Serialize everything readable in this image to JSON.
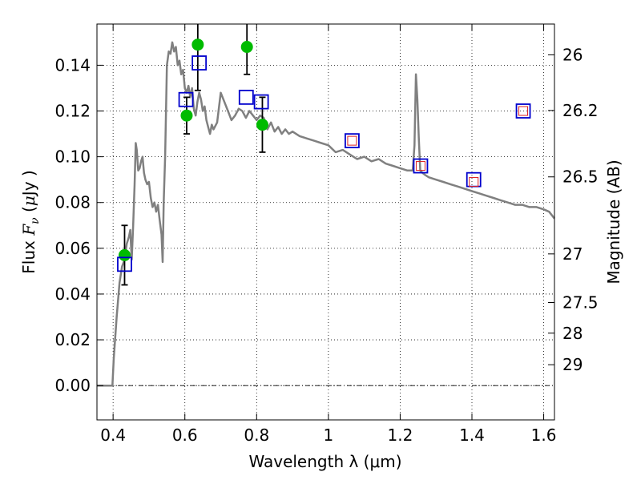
{
  "chart_data": {
    "type": "line",
    "title": "",
    "xlabel": "Wavelength  λ (μm)",
    "ylabel": {
      "prefix": "Flux  ",
      "symbol": "F",
      "subscript": "ν",
      "paren_open": "  (",
      "unit_mu": "μ",
      "unit_rest": "Jy )"
    },
    "y2label": "Magnitude (AB)",
    "xlim": [
      0.355,
      1.63
    ],
    "ylim": [
      -0.015,
      0.158
    ],
    "grid": true,
    "xticks": [
      {
        "value": 0.4,
        "label": "0.4"
      },
      {
        "value": 0.6,
        "label": "0.6"
      },
      {
        "value": 0.8,
        "label": "0.8"
      },
      {
        "value": 1.0,
        "label": "1"
      },
      {
        "value": 1.2,
        "label": "1.2"
      },
      {
        "value": 1.4,
        "label": "1.4"
      },
      {
        "value": 1.6,
        "label": "1.6"
      }
    ],
    "yticks": [
      {
        "value": 0.0,
        "label": "0.00"
      },
      {
        "value": 0.02,
        "label": "0.02"
      },
      {
        "value": 0.04,
        "label": "0.04"
      },
      {
        "value": 0.06,
        "label": "0.06"
      },
      {
        "value": 0.08,
        "label": "0.08"
      },
      {
        "value": 0.1,
        "label": "0.10"
      },
      {
        "value": 0.12,
        "label": "0.12"
      },
      {
        "value": 0.14,
        "label": "0.14"
      }
    ],
    "y2ticks": [
      {
        "value": 26,
        "label": "26"
      },
      {
        "value": 26.2,
        "label": "26.2"
      },
      {
        "value": 26.5,
        "label": "26.5"
      },
      {
        "value": 27,
        "label": "27"
      },
      {
        "value": 27.5,
        "label": "27.5"
      },
      {
        "value": 28,
        "label": "28"
      },
      {
        "value": 29,
        "label": "29"
      }
    ],
    "y2_zero_point_uJy": 23.9,
    "colors": {
      "model": "#808080",
      "observed": "#00bb00",
      "model_photometry": "#0000cc",
      "nir_fit": "#dd2222",
      "errorbar": "#000000",
      "zero_line": "#000000"
    },
    "series": [
      {
        "name": "model SED",
        "kind": "line",
        "x": [
          0.355,
          0.398,
          0.402,
          0.41,
          0.418,
          0.425,
          0.432,
          0.438,
          0.444,
          0.448,
          0.452,
          0.456,
          0.46,
          0.463,
          0.466,
          0.47,
          0.474,
          0.478,
          0.482,
          0.486,
          0.49,
          0.495,
          0.5,
          0.505,
          0.51,
          0.515,
          0.52,
          0.525,
          0.53,
          0.535,
          0.538,
          0.541,
          0.545,
          0.55,
          0.555,
          0.56,
          0.565,
          0.57,
          0.575,
          0.58,
          0.585,
          0.59,
          0.595,
          0.6,
          0.605,
          0.61,
          0.615,
          0.62,
          0.625,
          0.63,
          0.635,
          0.64,
          0.645,
          0.65,
          0.655,
          0.66,
          0.665,
          0.67,
          0.675,
          0.68,
          0.69,
          0.7,
          0.71,
          0.72,
          0.73,
          0.74,
          0.75,
          0.76,
          0.77,
          0.78,
          0.79,
          0.8,
          0.81,
          0.82,
          0.83,
          0.84,
          0.85,
          0.86,
          0.87,
          0.88,
          0.89,
          0.9,
          0.92,
          0.94,
          0.96,
          0.98,
          1.0,
          1.02,
          1.04,
          1.06,
          1.08,
          1.1,
          1.12,
          1.14,
          1.16,
          1.18,
          1.2,
          1.22,
          1.235,
          1.24,
          1.244,
          1.248,
          1.252,
          1.256,
          1.262,
          1.27,
          1.28,
          1.3,
          1.32,
          1.34,
          1.36,
          1.38,
          1.4,
          1.42,
          1.44,
          1.46,
          1.48,
          1.5,
          1.52,
          1.54,
          1.56,
          1.58,
          1.6,
          1.615,
          1.63
        ],
        "y": [
          0.0,
          0.0,
          0.012,
          0.03,
          0.045,
          0.052,
          0.055,
          0.062,
          0.065,
          0.068,
          0.055,
          0.07,
          0.088,
          0.106,
          0.103,
          0.094,
          0.095,
          0.098,
          0.1,
          0.093,
          0.09,
          0.088,
          0.089,
          0.082,
          0.078,
          0.08,
          0.076,
          0.079,
          0.072,
          0.066,
          0.054,
          0.08,
          0.1,
          0.14,
          0.146,
          0.145,
          0.15,
          0.146,
          0.148,
          0.14,
          0.142,
          0.136,
          0.138,
          0.13,
          0.128,
          0.131,
          0.126,
          0.13,
          0.121,
          0.118,
          0.124,
          0.128,
          0.125,
          0.12,
          0.122,
          0.116,
          0.113,
          0.11,
          0.114,
          0.112,
          0.115,
          0.128,
          0.124,
          0.12,
          0.116,
          0.118,
          0.121,
          0.12,
          0.117,
          0.12,
          0.118,
          0.116,
          0.118,
          0.117,
          0.112,
          0.115,
          0.111,
          0.113,
          0.11,
          0.112,
          0.11,
          0.111,
          0.109,
          0.108,
          0.107,
          0.106,
          0.105,
          0.102,
          0.103,
          0.101,
          0.099,
          0.1,
          0.098,
          0.099,
          0.097,
          0.096,
          0.095,
          0.094,
          0.094,
          0.105,
          0.136,
          0.125,
          0.108,
          0.094,
          0.093,
          0.092,
          0.091,
          0.09,
          0.089,
          0.088,
          0.087,
          0.086,
          0.085,
          0.084,
          0.083,
          0.082,
          0.081,
          0.08,
          0.079,
          0.079,
          0.078,
          0.078,
          0.077,
          0.076,
          0.073
        ]
      },
      {
        "name": "observed photometry",
        "kind": "points-errorbars",
        "x": [
          0.432,
          0.605,
          0.636,
          0.773,
          0.816
        ],
        "y": [
          0.057,
          0.118,
          0.149,
          0.148,
          0.114
        ],
        "yerr": [
          0.013,
          0.008,
          0.02,
          0.012,
          0.012
        ]
      },
      {
        "name": "model photometry",
        "kind": "open-squares",
        "x": [
          0.432,
          0.603,
          0.64,
          0.771,
          0.813,
          1.066,
          1.257,
          1.405,
          1.543
        ],
        "y": [
          0.053,
          0.125,
          0.141,
          0.126,
          0.124,
          0.107,
          0.096,
          0.09,
          0.12
        ]
      },
      {
        "name": "near-IR fit points",
        "kind": "small-squares",
        "x": [
          1.066,
          1.257,
          1.405,
          1.543
        ],
        "y": [
          0.107,
          0.096,
          0.089,
          0.12
        ]
      }
    ]
  }
}
